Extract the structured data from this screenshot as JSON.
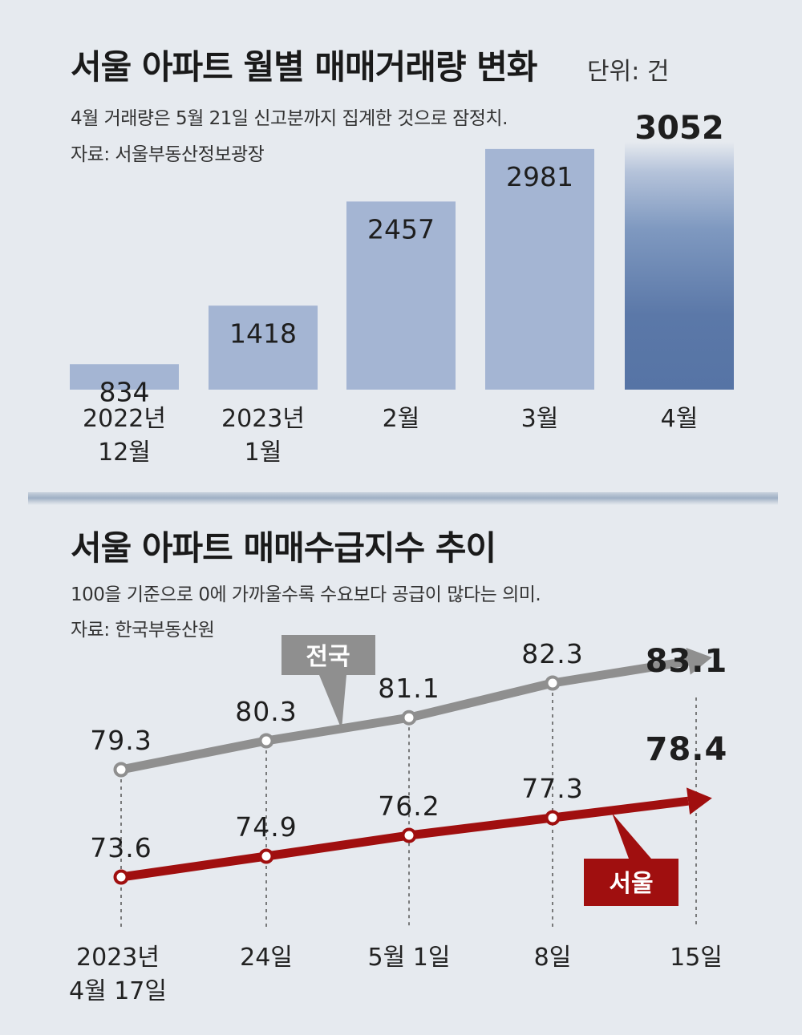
{
  "charts": [
    {
      "type": "bar",
      "title": "서울 아파트 월별 매매거래량 변화",
      "unit": "단위: 건",
      "note": "4월 거래량은 5월 21일 신고분까지 집계한 것으로 잠정치.",
      "source": "자료: 서울부동산정보광장",
      "highlight_color": "#5674a5",
      "bar_color": "#a4b5d3"
    },
    {
      "type": "line",
      "title": "서울 아파트 매매수급지수 추이",
      "note": "100을 기준으로 0에 가까울수록 수요보다 공급이 많다는 의미.",
      "source": "자료: 한국부동산원",
      "series_colors": {
        "national": "#8f8f8f",
        "seoul": "#a00f0f"
      }
    }
  ],
  "chart_data": [
    {
      "type": "bar",
      "title": "서울 아파트 월별 매매거래량 변화",
      "ylabel": "단위: 건",
      "categories": [
        {
          "line1": "2022년",
          "line2": "12월"
        },
        {
          "line1": "2023년",
          "line2": "1월"
        },
        {
          "line1": "2월",
          "line2": ""
        },
        {
          "line1": "3월",
          "line2": ""
        },
        {
          "line1": "4월",
          "line2": ""
        }
      ],
      "values": [
        834,
        1418,
        2457,
        2981,
        3052
      ],
      "value_labels": [
        "834",
        "1418",
        "2457",
        "2981",
        "3052"
      ],
      "highlight_index": 4,
      "ylim": [
        580,
        3620
      ]
    },
    {
      "type": "line",
      "title": "서울 아파트 매매수급지수 추이",
      "categories": [
        {
          "line1": "2023년",
          "line2": "4월 17일"
        },
        {
          "line1": "24일",
          "line2": ""
        },
        {
          "line1": "5월 1일",
          "line2": ""
        },
        {
          "line1": "8일",
          "line2": ""
        },
        {
          "line1": "15일",
          "line2": ""
        }
      ],
      "series": [
        {
          "name": "전국",
          "key": "national",
          "values": [
            79.3,
            80.3,
            81.1,
            82.3,
            83.1
          ],
          "value_labels": [
            "79.3",
            "80.3",
            "81.1",
            "82.3",
            "83.1"
          ]
        },
        {
          "name": "서울",
          "key": "seoul",
          "values": [
            73.6,
            74.9,
            76.2,
            77.3,
            78.4
          ],
          "value_labels": [
            "73.6",
            "74.9",
            "76.2",
            "77.3",
            "78.4"
          ]
        }
      ]
    }
  ]
}
